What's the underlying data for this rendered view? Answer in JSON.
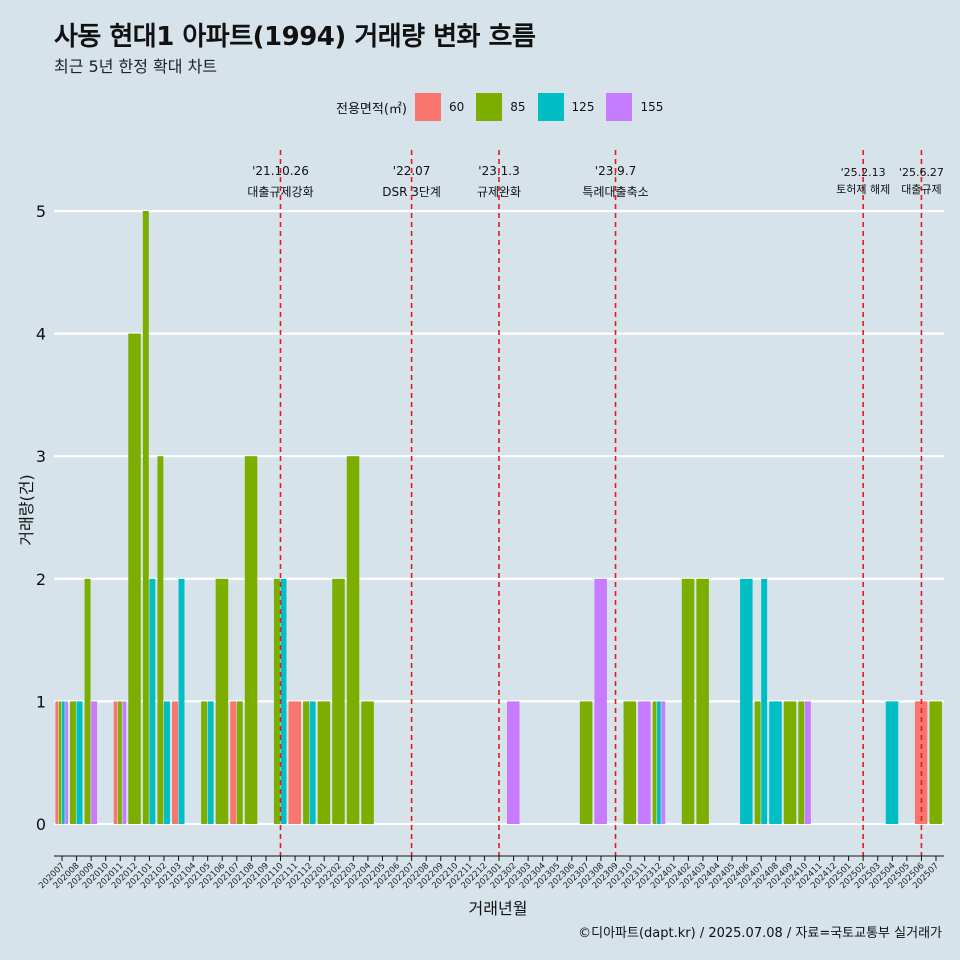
{
  "title": "사동 현대1 아파트(1994) 거래량 변화 흐름",
  "subtitle": "최근 5년 한정 확대 차트",
  "caption": "©디아파트(dapt.kr) / 2025.07.08 / 자료=국토교통부 실거래가",
  "legend": {
    "title": "전용면적(㎡)",
    "items": [
      {
        "label": "60",
        "color": "#F8766D"
      },
      {
        "label": "85",
        "color": "#7CAE00"
      },
      {
        "label": "125",
        "color": "#00BFC4"
      },
      {
        "label": "155",
        "color": "#C77CFF"
      }
    ]
  },
  "chart_data": {
    "type": "bar",
    "xlabel": "거래년월",
    "ylabel": "거래량(건)",
    "ylim": [
      0,
      5
    ],
    "yticks": [
      0,
      1,
      2,
      3,
      4,
      5
    ],
    "grid": true,
    "legend_position": "top",
    "categories": [
      "202007",
      "202008",
      "202009",
      "202010",
      "202011",
      "202012",
      "202101",
      "202102",
      "202103",
      "202104",
      "202105",
      "202106",
      "202107",
      "202108",
      "202109",
      "202110",
      "202111",
      "202112",
      "202201",
      "202202",
      "202203",
      "202204",
      "202205",
      "202206",
      "202207",
      "202208",
      "202209",
      "202210",
      "202211",
      "202212",
      "202301",
      "202302",
      "202303",
      "202304",
      "202305",
      "202306",
      "202307",
      "202308",
      "202309",
      "202310",
      "202311",
      "202312",
      "202401",
      "202402",
      "202403",
      "202404",
      "202405",
      "202406",
      "202407",
      "202408",
      "202409",
      "202410",
      "202411",
      "202412",
      "202501",
      "202502",
      "202503",
      "202504",
      "202505",
      "202506",
      "202507"
    ],
    "series": [
      {
        "name": "60",
        "color": "#F8766D",
        "values": [
          1,
          0,
          0,
          0,
          1,
          0,
          0,
          0,
          1,
          0,
          0,
          0,
          1,
          0,
          0,
          0,
          1,
          0,
          0,
          0,
          0,
          0,
          0,
          0,
          0,
          0,
          0,
          0,
          0,
          0,
          0,
          0,
          0,
          0,
          0,
          0,
          0,
          0,
          0,
          0,
          0,
          0,
          0,
          0,
          0,
          0,
          0,
          0,
          0,
          0,
          0,
          0,
          0,
          0,
          0,
          0,
          0,
          0,
          0,
          1,
          0
        ]
      },
      {
        "name": "85",
        "color": "#7CAE00",
        "values": [
          1,
          1,
          2,
          0,
          1,
          4,
          5,
          3,
          0,
          0,
          1,
          2,
          1,
          3,
          0,
          2,
          0,
          1,
          1,
          2,
          3,
          1,
          0,
          0,
          0,
          0,
          0,
          0,
          0,
          0,
          0,
          0,
          0,
          0,
          0,
          0,
          1,
          0,
          0,
          1,
          0,
          1,
          0,
          2,
          2,
          0,
          0,
          0,
          1,
          0,
          1,
          1,
          0,
          0,
          0,
          0,
          0,
          0,
          0,
          0,
          1
        ]
      },
      {
        "name": "125",
        "color": "#00BFC4",
        "values": [
          1,
          1,
          0,
          0,
          0,
          0,
          2,
          1,
          2,
          0,
          1,
          0,
          0,
          0,
          0,
          2,
          0,
          1,
          0,
          0,
          0,
          0,
          0,
          0,
          0,
          0,
          0,
          0,
          0,
          0,
          0,
          0,
          0,
          0,
          0,
          0,
          0,
          0,
          0,
          0,
          0,
          1,
          0,
          0,
          0,
          0,
          0,
          2,
          2,
          1,
          0,
          0,
          0,
          0,
          0,
          0,
          0,
          1,
          0,
          0,
          0
        ]
      },
      {
        "name": "155",
        "color": "#C77CFF",
        "values": [
          1,
          0,
          1,
          0,
          1,
          0,
          0,
          0,
          0,
          0,
          0,
          0,
          0,
          0,
          0,
          0,
          0,
          0,
          0,
          0,
          0,
          0,
          0,
          0,
          0,
          0,
          0,
          0,
          0,
          0,
          0,
          1,
          0,
          0,
          0,
          0,
          0,
          2,
          0,
          0,
          1,
          1,
          0,
          0,
          0,
          0,
          0,
          0,
          0,
          0,
          0,
          1,
          0,
          0,
          0,
          0,
          0,
          0,
          0,
          0,
          0
        ]
      }
    ],
    "annotations": [
      {
        "x": "202110",
        "date": "'21.10.26",
        "label": "대출규제강화"
      },
      {
        "x": "202207",
        "date": "'22.07",
        "label": "DSR 3단계"
      },
      {
        "x": "202301",
        "date": "'23.1.3",
        "label": "규제완화"
      },
      {
        "x": "202309",
        "date": "'23.9.7",
        "label": "특례대출축소"
      },
      {
        "x": "202502",
        "date": "'25.2.13",
        "label": "토허제 해제"
      },
      {
        "x": "202506",
        "date": "'25.6.27",
        "label": "대출규제"
      }
    ]
  }
}
